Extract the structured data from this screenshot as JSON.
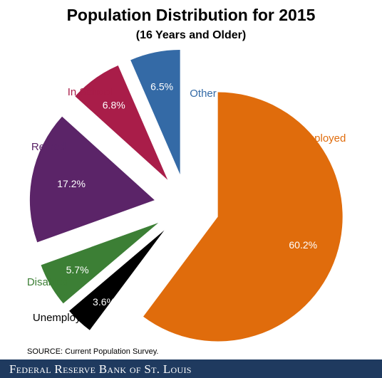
{
  "chart_data": {
    "type": "pie",
    "title": "Population Distribution for 2015",
    "subtitle": "(16 Years and Older)",
    "slices": [
      {
        "label": "Employed",
        "value": 60.2,
        "value_label": "60.2%",
        "color": "#e06c0c"
      },
      {
        "label": "Unemployed",
        "value": 3.6,
        "value_label": "3.6%",
        "color": "#000000"
      },
      {
        "label": "Disabled",
        "value": 5.7,
        "value_label": "5.7%",
        "color": "#3c7f35"
      },
      {
        "label": "Retired",
        "value": 17.2,
        "value_label": "17.2%",
        "color": "#5b2468"
      },
      {
        "label": "In School",
        "value": 6.8,
        "value_label": "6.8%",
        "color": "#a91d49"
      },
      {
        "label": "Other",
        "value": 6.5,
        "value_label": "6.5%",
        "color": "#346aa6"
      }
    ],
    "exploded": true
  },
  "source": "SOURCE: Current Population Survey.",
  "footer": "Federal Reserve Bank of St. Louis"
}
